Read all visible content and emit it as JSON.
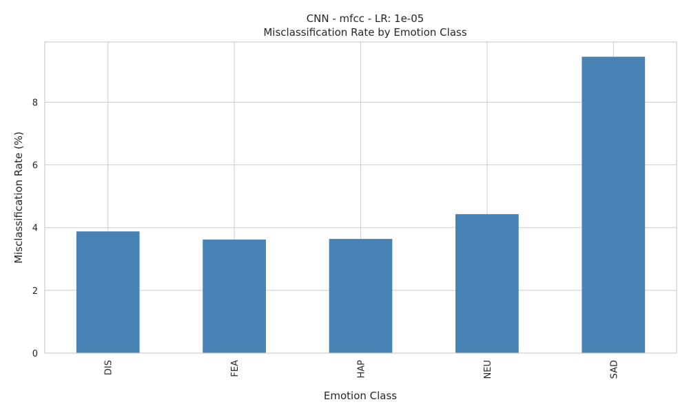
{
  "chart_data": {
    "type": "bar",
    "title": "CNN - mfcc - LR: 1e-05",
    "subtitle": "Misclassification Rate by Emotion Class",
    "xlabel": "Emotion Class",
    "ylabel": "Misclassification Rate (%)",
    "categories": [
      "DIS",
      "FEA",
      "HAP",
      "NEU",
      "SAD"
    ],
    "values": [
      3.88,
      3.62,
      3.64,
      4.43,
      9.45
    ],
    "ylim": [
      0,
      9.92
    ],
    "yticks": [
      0,
      2,
      4,
      6,
      8
    ],
    "ytick_labels": [
      "0",
      "2",
      "4",
      "6",
      "8"
    ],
    "grid": true,
    "bar_color": "#4682b4"
  }
}
